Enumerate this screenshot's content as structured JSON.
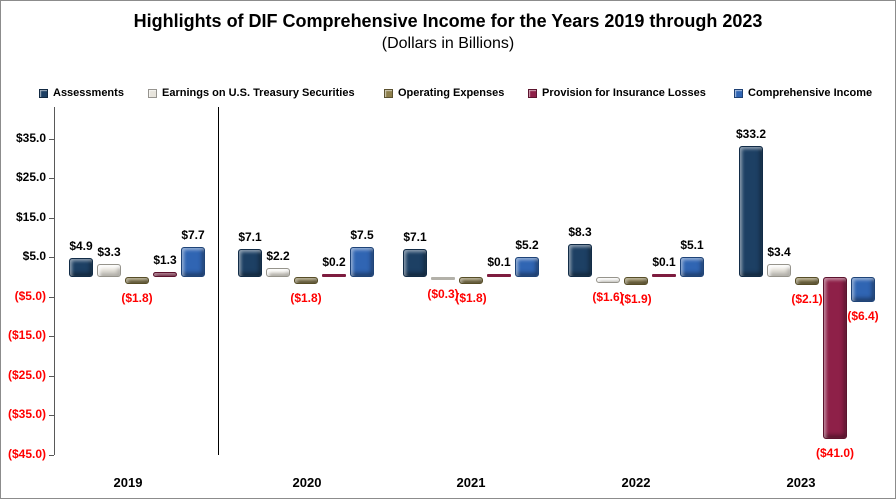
{
  "chart_data": {
    "type": "bar",
    "title": "Highlights of DIF Comprehensive Income for the Years 2019 through 2023",
    "subtitle": "(Dollars in Billions)",
    "legend_position": "top",
    "grid": false,
    "ylim": [
      -45,
      35
    ],
    "y_axis": {
      "ticks": [
        {
          "label": "$35.0",
          "value": 35
        },
        {
          "label": "$25.0",
          "value": 25
        },
        {
          "label": "$15.0",
          "value": 15
        },
        {
          "label": "$5.0",
          "value": 5
        },
        {
          "label": "($5.0)",
          "value": -5
        },
        {
          "label": "($15.0)",
          "value": -15
        },
        {
          "label": "($25.0)",
          "value": -25
        },
        {
          "label": "($35.0)",
          "value": -35
        },
        {
          "label": "($45.0)",
          "value": -45
        }
      ]
    },
    "categories": [
      "2019",
      "2020",
      "2021",
      "2022",
      "2023"
    ],
    "series": [
      {
        "name": "Assessments",
        "color": "#1d4064",
        "values": [
          4.9,
          7.1,
          7.1,
          8.3,
          33.2
        ]
      },
      {
        "name": "Earnings on U.S. Treasury Securities",
        "color": "#e7e4dc",
        "values": [
          3.3,
          2.2,
          -0.3,
          -1.6,
          3.4
        ]
      },
      {
        "name": "Operating Expenses",
        "color": "#8d7f4c",
        "values": [
          -1.8,
          -1.8,
          -1.8,
          -1.9,
          -2.1
        ]
      },
      {
        "name": "Provision for Insurance Losses",
        "color": "#8e2048",
        "values": [
          1.3,
          0.2,
          0.1,
          0.1,
          -41.0
        ]
      },
      {
        "name": "Comprehensive Income",
        "color": "#3065b3",
        "values": [
          7.7,
          7.5,
          5.2,
          5.1,
          -6.4
        ]
      }
    ],
    "data_labels": [
      [
        "$4.9",
        "$3.3",
        "($1.8)",
        "$1.3",
        "$7.7"
      ],
      [
        "$7.1",
        "$2.2",
        "($1.8)",
        "$0.2",
        "$7.5"
      ],
      [
        "$7.1",
        "($0.3)",
        "($1.8)",
        "$0.1",
        "$5.2"
      ],
      [
        "$8.3",
        "($1.6)",
        "($1.9)",
        "$0.1",
        "$5.1"
      ],
      [
        "$33.2",
        "$3.4",
        "($2.1)",
        "($41.0)",
        "($6.4)"
      ]
    ],
    "colors": {
      "positive_label": "#000000",
      "negative_label": "#ff0000",
      "axis": "#595959",
      "separator": "#000000"
    }
  }
}
